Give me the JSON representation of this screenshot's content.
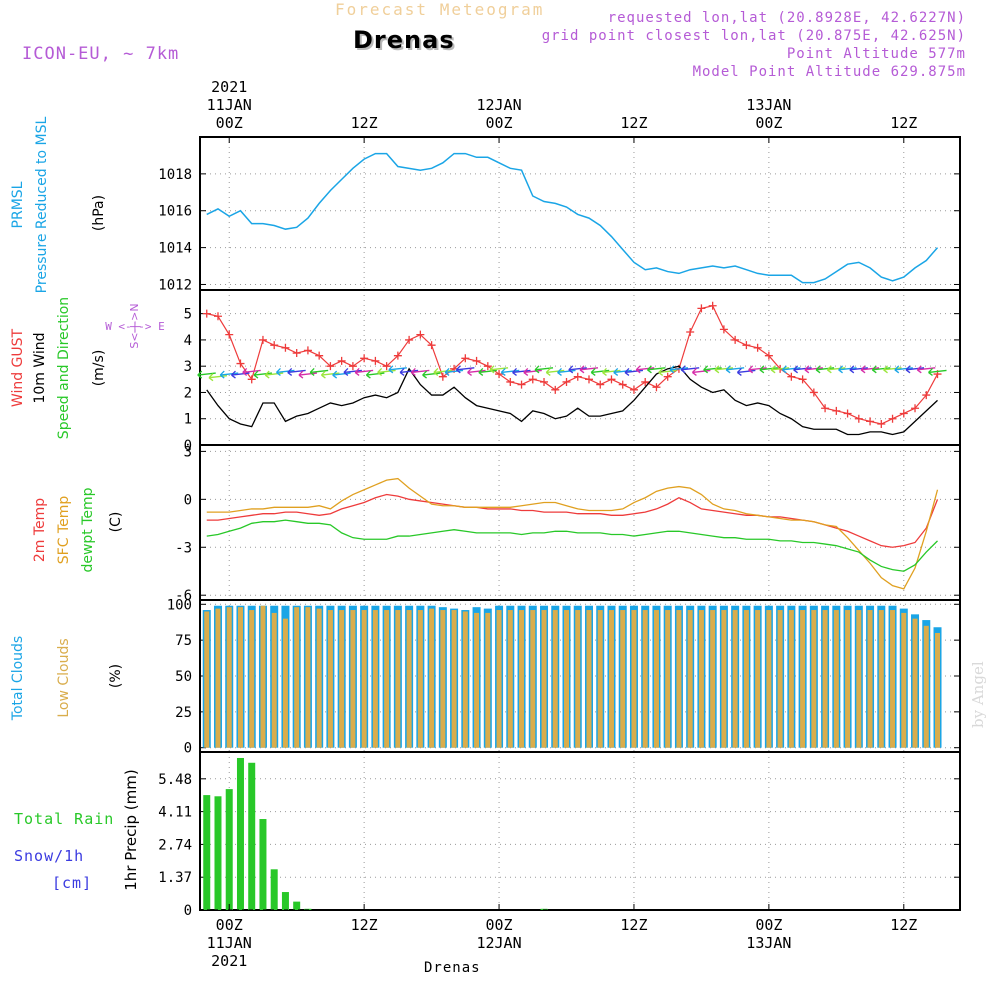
{
  "header": {
    "suptitle": "Forecast Meteogram",
    "station": "Drenas",
    "model": "ICON-EU, ~ 7km",
    "requested": "requested lon,lat (20.8928E, 42.6227N)",
    "grid_point": "grid point closest lon,lat (20.875E, 42.625N)",
    "point_altitude": "Point Altitude 577m",
    "model_altitude": "Model Point Altitude 629.875m",
    "byline": "by Angel",
    "bottom_station": "Drenas"
  },
  "rain_legend": {
    "total_rain": "Total Rain",
    "snow": "Snow/1h",
    "snow_unit": "[cm]",
    "axis_label": "1hr Precip (mm)"
  },
  "colors": {
    "pressure": "#1aa5e6",
    "gust": "#ee3b3b",
    "wind": "#000000",
    "temp": "#ee3b3b",
    "sfc_temp": "#e0a020",
    "dewpt": "#28c828",
    "total_clouds": "#1aa5e6",
    "low_clouds": "#d9ad4c",
    "rain": "#28c828",
    "snow": "#3a3ae0",
    "compass": "#b55bd6"
  },
  "chart_data": [
    {
      "type": "line",
      "panel": "pressure",
      "labels": [
        "PRMSL",
        "Pressure Reduced to MSL",
        "(hPa)"
      ],
      "ylim": [
        1011.7,
        1020.0
      ],
      "yticks": [
        1012,
        1014,
        1016,
        1018
      ],
      "grid": true,
      "x": [
        -2,
        -1,
        0,
        1,
        2,
        3,
        4,
        5,
        6,
        7,
        8,
        9,
        10,
        11,
        12,
        13,
        14,
        15,
        16,
        17,
        18,
        19,
        20,
        21,
        22,
        23,
        24,
        25,
        26,
        27,
        28,
        29,
        30,
        31,
        32,
        33,
        34,
        35,
        36,
        37,
        38,
        39,
        40,
        41,
        42,
        43,
        44,
        45,
        46,
        47,
        48,
        49,
        50,
        51,
        52,
        53,
        54,
        55,
        56,
        57,
        58,
        59,
        60,
        61,
        62,
        63
      ],
      "series": [
        {
          "values": [
            1015.8,
            1016.1,
            1015.7,
            1016.0,
            1015.3,
            1015.3,
            1015.2,
            1015.0,
            1015.1,
            1015.6,
            1016.4,
            1017.1,
            1017.7,
            1018.3,
            1018.8,
            1019.1,
            1019.1,
            1018.4,
            1018.3,
            1018.2,
            1018.3,
            1018.6,
            1019.1,
            1019.1,
            1018.9,
            1018.9,
            1018.6,
            1018.3,
            1018.2,
            1016.8,
            1016.5,
            1016.4,
            1016.2,
            1015.8,
            1015.6,
            1015.2,
            1014.6,
            1013.9,
            1013.2,
            1012.8,
            1012.9,
            1012.7,
            1012.6,
            1012.8,
            1012.9,
            1013.0,
            1012.9,
            1013.0,
            1012.8,
            1012.6,
            1012.5,
            1012.5,
            1012.5,
            1012.1,
            1012.1,
            1012.3,
            1012.7,
            1013.1,
            1013.2,
            1012.9,
            1012.4,
            1012.2,
            1012.4,
            1012.9,
            1013.3,
            1014.0
          ]
        }
      ]
    },
    {
      "type": "line",
      "panel": "wind",
      "labels": [
        "Wind GUST",
        "10m Wind",
        "Speed and Direction",
        "(m/s)"
      ],
      "compass": "W <-|-> E   S<-|->N",
      "ylim": [
        0,
        5.9
      ],
      "yticks": [
        0,
        1,
        2,
        3,
        4,
        5
      ],
      "grid": true,
      "x": [
        -2,
        -1,
        0,
        1,
        2,
        3,
        4,
        5,
        6,
        7,
        8,
        9,
        10,
        11,
        12,
        13,
        14,
        15,
        16,
        17,
        18,
        19,
        20,
        21,
        22,
        23,
        24,
        25,
        26,
        27,
        28,
        29,
        30,
        31,
        32,
        33,
        34,
        35,
        36,
        37,
        38,
        39,
        40,
        41,
        42,
        43,
        44,
        45,
        46,
        47,
        48,
        49,
        50,
        51,
        52,
        53,
        54,
        55,
        56,
        57,
        58,
        59,
        60,
        61,
        62,
        63
      ],
      "series": [
        {
          "name": "Wind GUST",
          "values": [
            5.0,
            4.9,
            4.2,
            3.1,
            2.5,
            4.0,
            3.8,
            3.7,
            3.5,
            3.6,
            3.4,
            3.0,
            3.2,
            3.0,
            3.3,
            3.2,
            3.0,
            3.4,
            4.0,
            4.2,
            3.8,
            2.6,
            2.9,
            3.3,
            3.2,
            3.0,
            2.7,
            2.4,
            2.3,
            2.5,
            2.4,
            2.1,
            2.4,
            2.6,
            2.5,
            2.3,
            2.5,
            2.3,
            2.1,
            2.4,
            2.2,
            2.6,
            2.9,
            4.3,
            5.2,
            5.3,
            4.4,
            4.0,
            3.8,
            3.7,
            3.4,
            2.9,
            2.6,
            2.5,
            2.0,
            1.4,
            1.3,
            1.2,
            1.0,
            0.9,
            0.8,
            1.0,
            1.2,
            1.4,
            1.9,
            2.7
          ]
        },
        {
          "name": "10m Wind",
          "values": [
            2.1,
            1.5,
            1.0,
            0.8,
            0.7,
            1.6,
            1.6,
            0.9,
            1.1,
            1.2,
            1.4,
            1.6,
            1.5,
            1.6,
            1.8,
            1.9,
            1.8,
            2.0,
            2.9,
            2.3,
            1.9,
            1.9,
            2.2,
            1.8,
            1.5,
            1.4,
            1.3,
            1.2,
            0.9,
            1.3,
            1.2,
            1.0,
            1.1,
            1.4,
            1.1,
            1.1,
            1.2,
            1.3,
            1.7,
            2.2,
            2.7,
            2.9,
            3.0,
            2.5,
            2.2,
            2.0,
            2.1,
            1.7,
            1.5,
            1.6,
            1.5,
            1.2,
            1.0,
            0.7,
            0.6,
            0.6,
            0.6,
            0.4,
            0.4,
            0.5,
            0.5,
            0.4,
            0.5,
            0.9,
            1.3,
            1.7
          ]
        },
        {
          "name": "direction",
          "values": [
            2.7,
            2.6,
            2.7,
            2.7,
            2.8,
            2.7,
            2.7,
            2.8,
            2.8,
            2.7,
            2.8,
            2.7,
            2.7,
            2.8,
            2.8,
            2.7,
            2.8,
            2.9,
            2.8,
            2.8,
            2.7,
            2.8,
            2.8,
            2.9,
            2.8,
            2.8,
            2.9,
            2.8,
            2.8,
            2.8,
            2.9,
            2.8,
            2.8,
            2.9,
            2.9,
            2.8,
            2.8,
            2.8,
            2.8,
            2.9,
            2.9,
            2.8,
            2.9,
            2.9,
            2.8,
            2.9,
            2.9,
            2.9,
            2.8,
            2.9,
            2.9,
            2.9,
            2.9,
            2.9,
            2.9,
            2.9,
            2.9,
            2.9,
            2.9,
            2.9,
            2.9,
            2.9,
            2.9,
            2.9,
            2.9,
            2.8
          ]
        }
      ]
    },
    {
      "type": "line",
      "panel": "temperature",
      "labels": [
        "2m Temp",
        "SFC Temp",
        "dewpt Temp",
        "(C)"
      ],
      "ylim": [
        -6.3,
        3.4
      ],
      "yticks": [
        -6,
        -3,
        0,
        3
      ],
      "grid": true,
      "x": [
        -2,
        -1,
        0,
        1,
        2,
        3,
        4,
        5,
        6,
        7,
        8,
        9,
        10,
        11,
        12,
        13,
        14,
        15,
        16,
        17,
        18,
        19,
        20,
        21,
        22,
        23,
        24,
        25,
        26,
        27,
        28,
        29,
        30,
        31,
        32,
        33,
        34,
        35,
        36,
        37,
        38,
        39,
        40,
        41,
        42,
        43,
        44,
        45,
        46,
        47,
        48,
        49,
        50,
        51,
        52,
        53,
        54,
        55,
        56,
        57,
        58,
        59,
        60,
        61,
        62,
        63
      ],
      "series": [
        {
          "name": "2m Temp",
          "values": [
            -1.3,
            -1.3,
            -1.2,
            -1.1,
            -1.0,
            -0.9,
            -0.9,
            -0.8,
            -0.8,
            -0.9,
            -1.0,
            -0.9,
            -0.6,
            -0.4,
            -0.2,
            0.1,
            0.3,
            0.2,
            0.0,
            -0.1,
            -0.2,
            -0.3,
            -0.4,
            -0.5,
            -0.5,
            -0.6,
            -0.6,
            -0.6,
            -0.7,
            -0.7,
            -0.8,
            -0.8,
            -0.8,
            -0.9,
            -0.9,
            -0.9,
            -1.0,
            -1.0,
            -0.9,
            -0.8,
            -0.6,
            -0.3,
            0.1,
            -0.2,
            -0.6,
            -0.7,
            -0.8,
            -0.9,
            -1.0,
            -1.0,
            -1.1,
            -1.1,
            -1.2,
            -1.3,
            -1.4,
            -1.6,
            -1.8,
            -2.0,
            -2.3,
            -2.6,
            -2.9,
            -3.0,
            -2.9,
            -2.7,
            -1.8,
            0.0
          ]
        },
        {
          "name": "SFC Temp",
          "values": [
            -0.8,
            -0.8,
            -0.8,
            -0.7,
            -0.6,
            -0.6,
            -0.5,
            -0.5,
            -0.5,
            -0.5,
            -0.4,
            -0.6,
            -0.1,
            0.3,
            0.6,
            0.9,
            1.2,
            1.3,
            0.7,
            0.2,
            -0.3,
            -0.4,
            -0.4,
            -0.5,
            -0.5,
            -0.5,
            -0.5,
            -0.5,
            -0.4,
            -0.3,
            -0.2,
            -0.2,
            -0.4,
            -0.6,
            -0.7,
            -0.7,
            -0.7,
            -0.6,
            -0.2,
            0.1,
            0.5,
            0.7,
            0.8,
            0.7,
            0.3,
            -0.3,
            -0.6,
            -0.7,
            -0.9,
            -1.0,
            -1.1,
            -1.2,
            -1.3,
            -1.3,
            -1.4,
            -1.6,
            -1.7,
            -2.4,
            -3.2,
            -4.0,
            -4.9,
            -5.4,
            -5.6,
            -4.3,
            -2.0,
            0.6
          ]
        },
        {
          "name": "dewpt Temp",
          "values": [
            -2.3,
            -2.2,
            -2.0,
            -1.8,
            -1.5,
            -1.4,
            -1.4,
            -1.3,
            -1.4,
            -1.5,
            -1.5,
            -1.6,
            -2.1,
            -2.4,
            -2.5,
            -2.5,
            -2.5,
            -2.3,
            -2.3,
            -2.2,
            -2.1,
            -2.0,
            -1.9,
            -2.0,
            -2.1,
            -2.1,
            -2.1,
            -2.1,
            -2.2,
            -2.1,
            -2.1,
            -2.0,
            -2.0,
            -2.1,
            -2.1,
            -2.1,
            -2.2,
            -2.2,
            -2.3,
            -2.2,
            -2.1,
            -2.0,
            -2.0,
            -2.1,
            -2.2,
            -2.3,
            -2.4,
            -2.4,
            -2.5,
            -2.5,
            -2.5,
            -2.6,
            -2.6,
            -2.7,
            -2.7,
            -2.8,
            -2.9,
            -3.1,
            -3.3,
            -3.8,
            -4.2,
            -4.4,
            -4.5,
            -4.1,
            -3.3,
            -2.6
          ]
        }
      ]
    },
    {
      "type": "bar",
      "panel": "clouds",
      "labels": [
        "Total Clouds",
        "Low Clouds",
        "(%)"
      ],
      "ylim": [
        -3,
        103
      ],
      "yticks": [
        0,
        25,
        50,
        75,
        100
      ],
      "grid": true,
      "x": [
        -2,
        -1,
        0,
        1,
        2,
        3,
        4,
        5,
        6,
        7,
        8,
        9,
        10,
        11,
        12,
        13,
        14,
        15,
        16,
        17,
        18,
        19,
        20,
        21,
        22,
        23,
        24,
        25,
        26,
        27,
        28,
        29,
        30,
        31,
        32,
        33,
        34,
        35,
        36,
        37,
        38,
        39,
        40,
        41,
        42,
        43,
        44,
        45,
        46,
        47,
        48,
        49,
        50,
        51,
        52,
        53,
        54,
        55,
        56,
        57,
        58,
        59,
        60,
        61,
        62,
        63
      ],
      "series": [
        {
          "name": "Total Clouds",
          "values": [
            96,
            99,
            99,
            99,
            99,
            99,
            99,
            99,
            99,
            99,
            99,
            99,
            99,
            99,
            99,
            99,
            99,
            99,
            99,
            99,
            99,
            98,
            97,
            96,
            98,
            97,
            99,
            99,
            99,
            99,
            99,
            99,
            99,
            99,
            99,
            99,
            99,
            99,
            99,
            99,
            99,
            99,
            99,
            99,
            99,
            99,
            99,
            99,
            99,
            99,
            99,
            99,
            99,
            99,
            99,
            99,
            99,
            99,
            99,
            99,
            99,
            99,
            97,
            93,
            89,
            84
          ]
        },
        {
          "name": "Low Clouds",
          "values": [
            95,
            97,
            98,
            98,
            96,
            99,
            94,
            90,
            98,
            98,
            97,
            96,
            96,
            96,
            96,
            96,
            96,
            96,
            96,
            96,
            97,
            96,
            96,
            95,
            94,
            94,
            96,
            96,
            96,
            96,
            96,
            96,
            96,
            96,
            96,
            96,
            96,
            96,
            96,
            96,
            96,
            96,
            96,
            96,
            96,
            96,
            96,
            96,
            96,
            96,
            96,
            96,
            96,
            96,
            96,
            96,
            96,
            96,
            96,
            96,
            96,
            96,
            94,
            90,
            85,
            80
          ]
        }
      ]
    },
    {
      "type": "bar",
      "panel": "precip",
      "labels": [
        "Total Rain",
        "Snow/1h",
        "[cm]",
        "1hr Precip (mm)"
      ],
      "ylim": [
        0,
        6.6
      ],
      "yticks": [
        0,
        1.37,
        2.74,
        4.11,
        5.48
      ],
      "ytick_labels": [
        "0",
        "1.37",
        "2.74",
        "4.11",
        "5.48"
      ],
      "grid": true,
      "x": [
        -2,
        -1,
        0,
        1,
        2,
        3,
        4,
        5,
        6,
        7,
        8,
        9,
        10,
        11,
        12,
        13,
        14,
        15,
        16,
        17,
        18,
        19,
        20,
        21,
        22,
        23,
        24,
        25,
        26,
        27,
        28,
        29,
        30,
        31,
        32,
        33,
        34,
        35,
        36,
        37,
        38,
        39,
        40,
        41,
        42,
        43,
        44,
        45,
        46,
        47,
        48,
        49,
        50,
        51,
        52,
        53,
        54,
        55,
        56,
        57,
        58,
        59,
        60,
        61,
        62,
        63
      ],
      "series": [
        {
          "name": "Total Rain",
          "values": [
            4.8,
            4.75,
            5.05,
            6.35,
            6.15,
            3.8,
            1.7,
            0.75,
            0.35,
            0.05,
            0,
            0,
            0,
            0,
            0,
            0,
            0,
            0,
            0,
            0,
            0,
            0,
            0,
            0,
            0,
            0,
            0,
            0,
            0,
            0,
            0.05,
            0,
            0,
            0,
            0,
            0,
            0,
            0,
            0,
            0,
            0,
            0,
            0,
            0,
            0,
            0,
            0,
            0,
            0,
            0,
            0,
            0,
            0,
            0,
            0,
            0,
            0,
            0,
            0,
            0,
            0,
            0,
            0,
            0,
            0,
            0
          ]
        }
      ]
    }
  ],
  "axis": {
    "top_year": "2021",
    "bottom_year": "2021",
    "ticks": [
      {
        "x": 0,
        "label": "00Z",
        "date": "11JAN"
      },
      {
        "x": 12,
        "label": "12Z",
        "date": ""
      },
      {
        "x": 24,
        "label": "00Z",
        "date": "12JAN"
      },
      {
        "x": 36,
        "label": "12Z",
        "date": ""
      },
      {
        "x": 48,
        "label": "00Z",
        "date": "13JAN"
      },
      {
        "x": 60,
        "label": "12Z",
        "date": ""
      }
    ]
  }
}
